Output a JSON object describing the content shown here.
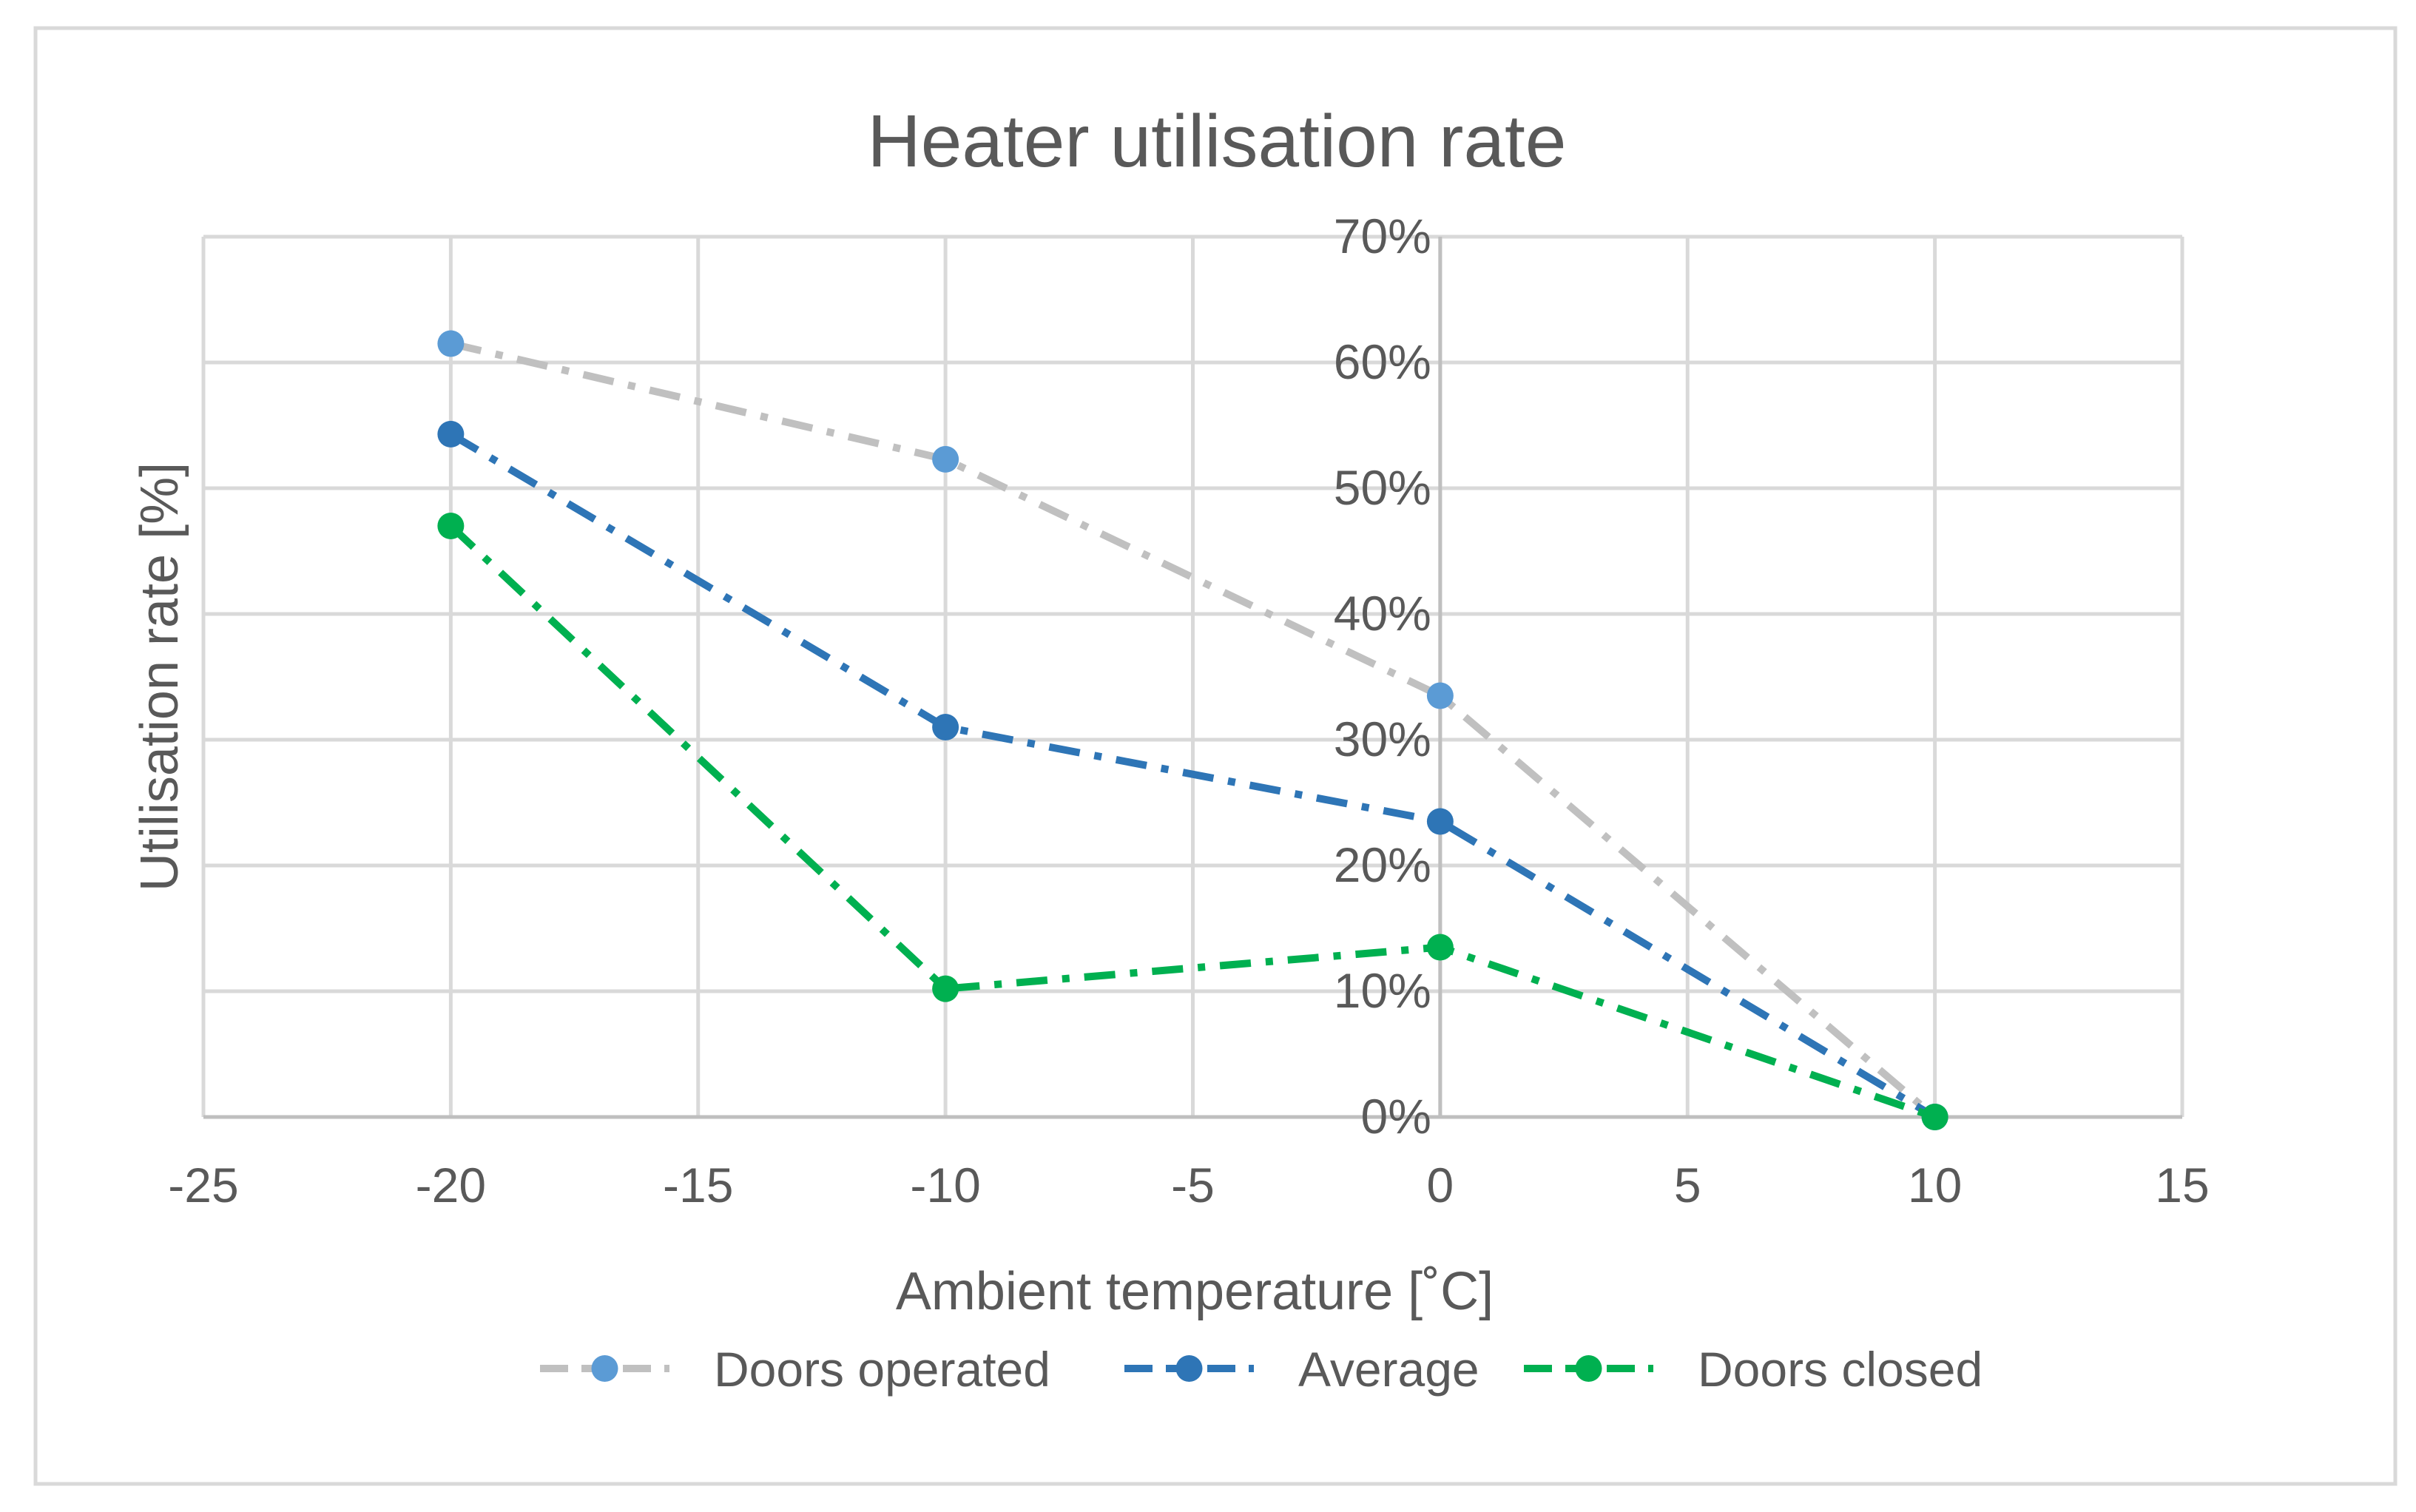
{
  "chart_data": {
    "type": "line",
    "title": "Heater utilisation rate",
    "xlabel": "Ambient temperature [˚C]",
    "ylabel": "Utilisation rate [%]",
    "xlim": [
      -25,
      15
    ],
    "ylim": [
      0,
      70
    ],
    "x_ticks": [
      -25,
      -20,
      -15,
      -10,
      -5,
      0,
      5,
      10,
      15
    ],
    "x_tick_labels": [
      "-25",
      "-20",
      "-15",
      "-10",
      "-5",
      "0",
      "5",
      "10",
      "15"
    ],
    "y_ticks": [
      0,
      10,
      20,
      30,
      40,
      50,
      60,
      70
    ],
    "y_tick_labels": [
      "0%",
      "10%",
      "20%",
      "30%",
      "40%",
      "50%",
      "60%",
      "70%"
    ],
    "grid": true,
    "legend_position": "bottom",
    "x": [
      -20,
      -10,
      0,
      10
    ],
    "series": [
      {
        "name": "Doors operated",
        "values": [
          61.5,
          52.3,
          33.5,
          0
        ],
        "color": "#c0c0c0",
        "marker_color": "#5b9bd5",
        "dash": "dashdot"
      },
      {
        "name": "Average",
        "values": [
          54.3,
          31.0,
          23.5,
          0
        ],
        "color": "#2e75b6",
        "marker_color": "#2e75b6",
        "dash": "dashdot"
      },
      {
        "name": "Doors closed",
        "values": [
          47.0,
          10.2,
          13.5,
          0
        ],
        "color": "#00b050",
        "marker_color": "#00b050",
        "dash": "dashdot"
      }
    ]
  }
}
